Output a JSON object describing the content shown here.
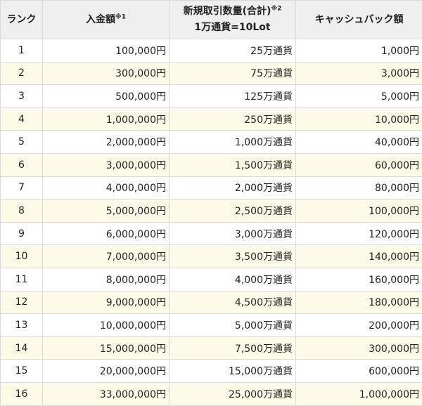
{
  "headers": {
    "rank": "ランク",
    "deposit": "入金額",
    "deposit_note": "※1",
    "volume": "新規取引数量(合計)",
    "volume_note": "※2",
    "volume_sub": "1万通貨=10Lot",
    "cashback": "キャッシュバック額"
  },
  "rows": [
    {
      "rank": "1",
      "deposit": "100,000円",
      "volume": "25万通貨",
      "cashback": "1,000円"
    },
    {
      "rank": "2",
      "deposit": "300,000円",
      "volume": "75万通貨",
      "cashback": "3,000円"
    },
    {
      "rank": "3",
      "deposit": "500,000円",
      "volume": "125万通貨",
      "cashback": "5,000円"
    },
    {
      "rank": "4",
      "deposit": "1,000,000円",
      "volume": "250万通貨",
      "cashback": "10,000円"
    },
    {
      "rank": "5",
      "deposit": "2,000,000円",
      "volume": "1,000万通貨",
      "cashback": "40,000円"
    },
    {
      "rank": "6",
      "deposit": "3,000,000円",
      "volume": "1,500万通貨",
      "cashback": "60,000円"
    },
    {
      "rank": "7",
      "deposit": "4,000,000円",
      "volume": "2,000万通貨",
      "cashback": "80,000円"
    },
    {
      "rank": "8",
      "deposit": "5,000,000円",
      "volume": "2,500万通貨",
      "cashback": "100,000円"
    },
    {
      "rank": "9",
      "deposit": "6,000,000円",
      "volume": "3,000万通貨",
      "cashback": "120,000円"
    },
    {
      "rank": "10",
      "deposit": "7,000,000円",
      "volume": "3,500万通貨",
      "cashback": "140,000円"
    },
    {
      "rank": "11",
      "deposit": "8,000,000円",
      "volume": "4,000万通貨",
      "cashback": "160,000円"
    },
    {
      "rank": "12",
      "deposit": "9,000,000円",
      "volume": "4,500万通貨",
      "cashback": "180,000円"
    },
    {
      "rank": "13",
      "deposit": "10,000,000円",
      "volume": "5,000万通貨",
      "cashback": "200,000円"
    },
    {
      "rank": "14",
      "deposit": "15,000,000円",
      "volume": "7,500万通貨",
      "cashback": "300,000円"
    },
    {
      "rank": "15",
      "deposit": "20,000,000円",
      "volume": "15,000万通貨",
      "cashback": "600,000円"
    },
    {
      "rank": "16",
      "deposit": "33,000,000円",
      "volume": "25,000万通貨",
      "cashback": "1,000,000円"
    }
  ]
}
